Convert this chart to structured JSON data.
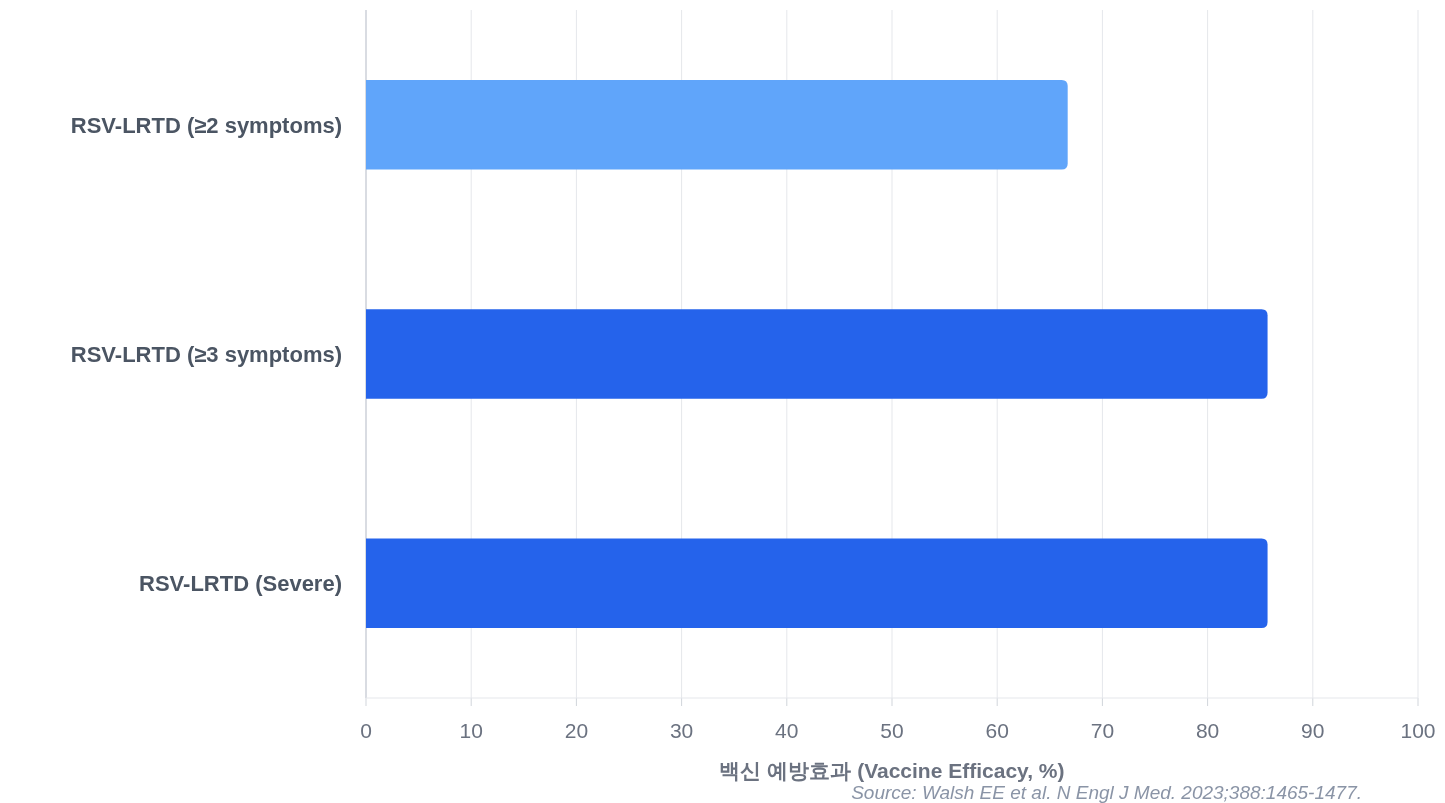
{
  "chart_data": {
    "type": "bar",
    "orientation": "horizontal",
    "categories": [
      "RSV-LRTD (≥2 symptoms)",
      "RSV-LRTD (≥3 symptoms)",
      "RSV-LRTD (Severe)"
    ],
    "values": [
      66.7,
      85.7,
      85.7
    ],
    "colors": [
      "#60a5fa",
      "#2563eb",
      "#2563eb"
    ],
    "xlim": [
      0,
      100
    ],
    "xticks": [
      0,
      10,
      20,
      30,
      40,
      50,
      60,
      70,
      80,
      90,
      100
    ],
    "xlabel": "백신 예방효과 (Vaccine Efficacy, %)",
    "grid": "x",
    "annotations": [
      "Source: Walsh EE et al. N Engl J Med. 2023;388:1465-1477."
    ]
  }
}
